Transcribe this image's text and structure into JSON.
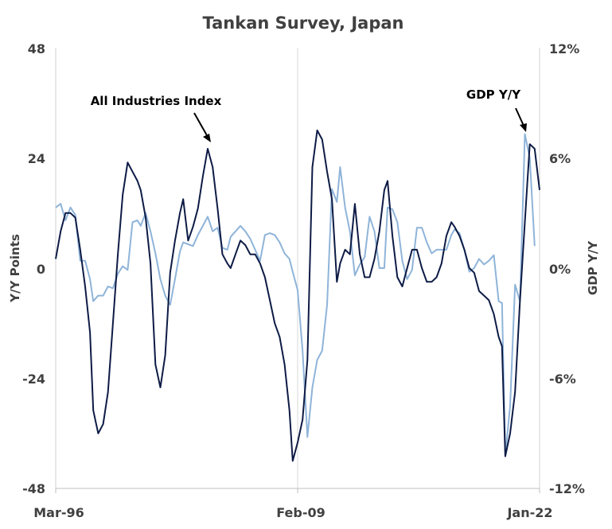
{
  "chart_data": {
    "type": "line",
    "title": "Tankan  Survey, Japan",
    "ylabel_left": "Y/Y Points",
    "ylabel_right": "GDP  Y/Y",
    "left_axis": {
      "ylim": [
        -48,
        48
      ],
      "ticks": [
        "48",
        "24",
        "0",
        "-24",
        "-48"
      ],
      "tick_values": [
        48,
        24,
        0,
        -24,
        -48
      ]
    },
    "right_axis": {
      "ylim": [
        -12,
        12
      ],
      "ticks": [
        "12%",
        "6%",
        "0%",
        "-6%",
        "-12%"
      ],
      "tick_values": [
        12,
        6,
        0,
        -6,
        -12
      ]
    },
    "xlim": [
      1996.17,
      2022.0
    ],
    "x_ticks": [
      {
        "label": "Mar-96",
        "value": 1996.17
      },
      {
        "label": "Feb-09",
        "value": 2009.08
      },
      {
        "label": "Jan-22",
        "value": 2022.0
      }
    ],
    "grid": "vertical-only",
    "annotations": [
      {
        "text": "All Industries Index",
        "series": 0,
        "x": 2005.7,
        "y": 26
      },
      {
        "text": "GDP Y/Y",
        "series": 1,
        "x": 2021.5,
        "y": 6.8
      }
    ],
    "series": [
      {
        "name": "All Industries Index",
        "axis": "left",
        "color": "#0d1b45",
        "points": [
          [
            1996.2,
            2
          ],
          [
            1996.5,
            8
          ],
          [
            1996.8,
            12
          ],
          [
            1997.1,
            12
          ],
          [
            1997.4,
            11
          ],
          [
            1997.7,
            4
          ],
          [
            1998.0,
            -4
          ],
          [
            1998.3,
            -14
          ],
          [
            1998.5,
            -31
          ],
          [
            1998.8,
            -36
          ],
          [
            1999.1,
            -34
          ],
          [
            1999.4,
            -27
          ],
          [
            1999.7,
            -12
          ],
          [
            2000.0,
            3
          ],
          [
            2000.3,
            16
          ],
          [
            2000.6,
            23
          ],
          [
            2000.9,
            21
          ],
          [
            2001.2,
            19
          ],
          [
            2001.4,
            17
          ],
          [
            2001.7,
            11
          ],
          [
            2002.0,
            1
          ],
          [
            2002.3,
            -21
          ],
          [
            2002.6,
            -26
          ],
          [
            2002.9,
            -19
          ],
          [
            2003.2,
            -1
          ],
          [
            2003.5,
            6
          ],
          [
            2003.8,
            12
          ],
          [
            2004.0,
            15
          ],
          [
            2004.3,
            6
          ],
          [
            2004.6,
            9
          ],
          [
            2004.9,
            13
          ],
          [
            2005.2,
            20
          ],
          [
            2005.5,
            26
          ],
          [
            2005.8,
            22
          ],
          [
            2006.1,
            13
          ],
          [
            2006.4,
            3
          ],
          [
            2006.7,
            1
          ],
          [
            2006.9,
            0
          ],
          [
            2007.2,
            3
          ],
          [
            2007.5,
            6
          ],
          [
            2007.8,
            5
          ],
          [
            2008.1,
            3
          ],
          [
            2008.4,
            3
          ],
          [
            2008.7,
            1
          ],
          [
            2009.0,
            -2
          ],
          [
            2009.3,
            -7
          ],
          [
            2009.6,
            -12
          ],
          [
            2009.9,
            -15
          ],
          [
            2010.2,
            -21
          ],
          [
            2010.5,
            -31
          ],
          [
            2010.7,
            -42
          ],
          [
            2011.0,
            -38
          ],
          [
            2011.3,
            -33
          ],
          [
            2011.6,
            -20
          ],
          [
            2011.9,
            22
          ],
          [
            2012.2,
            30
          ],
          [
            2012.5,
            28
          ],
          [
            2012.8,
            21
          ],
          [
            2013.1,
            15
          ],
          [
            2013.4,
            -3
          ],
          [
            2013.6,
            1
          ],
          [
            2013.9,
            4
          ],
          [
            2014.2,
            3
          ],
          [
            2014.5,
            14
          ],
          [
            2014.8,
            3
          ],
          [
            2015.1,
            -2
          ],
          [
            2015.4,
            -2
          ],
          [
            2015.7,
            2
          ],
          [
            2016.0,
            8
          ],
          [
            2016.3,
            17
          ],
          [
            2016.5,
            19
          ],
          [
            2016.8,
            7
          ],
          [
            2017.1,
            -2
          ],
          [
            2017.4,
            -4
          ],
          [
            2017.7,
            0
          ],
          [
            2018.0,
            4
          ],
          [
            2018.3,
            4
          ],
          [
            2018.6,
            0
          ],
          [
            2018.9,
            -3
          ],
          [
            2019.2,
            -3
          ],
          [
            2019.5,
            -2
          ],
          [
            2019.8,
            1
          ],
          [
            2020.1,
            7
          ],
          [
            2020.4,
            10
          ],
          [
            2020.6,
            9
          ],
          [
            2020.9,
            7
          ],
          [
            2021.2,
            4
          ],
          [
            2021.5,
            0
          ],
          [
            2021.8,
            -1
          ],
          [
            2022.1,
            -5
          ],
          [
            2022.4,
            -6
          ],
          [
            2022.7,
            -7
          ],
          [
            2023.0,
            -10
          ],
          [
            2023.3,
            -15
          ],
          [
            2023.5,
            -17
          ],
          [
            2023.7,
            -41
          ],
          [
            2024.0,
            -36
          ],
          [
            2024.3,
            -27
          ],
          [
            2024.6,
            -7
          ],
          [
            2024.9,
            10
          ],
          [
            2025.2,
            27
          ],
          [
            2025.5,
            26
          ],
          [
            2025.8,
            17
          ]
        ]
      },
      {
        "name": "GDP Y/Y",
        "axis": "right",
        "color": "#8fb4d9",
        "points": [
          [
            1996.2,
            3.3
          ],
          [
            1996.5,
            3.5
          ],
          [
            1996.8,
            2.6
          ],
          [
            1997.1,
            3.3
          ],
          [
            1997.4,
            2.9
          ],
          [
            1997.7,
            0.4
          ],
          [
            1998.0,
            0.4
          ],
          [
            1998.3,
            -0.6
          ],
          [
            1998.5,
            -1.8
          ],
          [
            1998.8,
            -1.5
          ],
          [
            1999.1,
            -1.5
          ],
          [
            1999.4,
            -1.0
          ],
          [
            1999.7,
            -1.1
          ],
          [
            2000.0,
            -0.3
          ],
          [
            2000.3,
            0.1
          ],
          [
            2000.6,
            -0.1
          ],
          [
            2000.9,
            2.5
          ],
          [
            2001.2,
            2.6
          ],
          [
            2001.4,
            2.3
          ],
          [
            2001.7,
            3.0
          ],
          [
            2002.0,
            2.0
          ],
          [
            2002.3,
            0.8
          ],
          [
            2002.6,
            -0.6
          ],
          [
            2002.9,
            -1.5
          ],
          [
            2003.2,
            -2.0
          ],
          [
            2003.5,
            -0.6
          ],
          [
            2003.8,
            0.9
          ],
          [
            2004.0,
            1.4
          ],
          [
            2004.3,
            1.3
          ],
          [
            2004.6,
            1.2
          ],
          [
            2004.9,
            1.8
          ],
          [
            2005.2,
            2.3
          ],
          [
            2005.5,
            2.8
          ],
          [
            2005.8,
            2.0
          ],
          [
            2006.1,
            2.2
          ],
          [
            2006.4,
            1.1
          ],
          [
            2006.7,
            1.0
          ],
          [
            2006.9,
            1.7
          ],
          [
            2007.2,
            2.0
          ],
          [
            2007.5,
            2.3
          ],
          [
            2007.8,
            2.0
          ],
          [
            2008.1,
            1.6
          ],
          [
            2008.4,
            1.0
          ],
          [
            2008.7,
            0.4
          ],
          [
            2009.0,
            1.8
          ],
          [
            2009.3,
            1.9
          ],
          [
            2009.6,
            1.8
          ],
          [
            2009.9,
            1.4
          ],
          [
            2010.2,
            0.8
          ],
          [
            2010.5,
            0.5
          ],
          [
            2010.7,
            -0.2
          ],
          [
            2011.0,
            -1.2
          ],
          [
            2011.3,
            -4.5
          ],
          [
            2011.6,
            -9.2
          ],
          [
            2011.9,
            -6.5
          ],
          [
            2012.2,
            -5.0
          ],
          [
            2012.5,
            -4.5
          ],
          [
            2012.8,
            -2.0
          ],
          [
            2013.1,
            4.3
          ],
          [
            2013.4,
            3.6
          ],
          [
            2013.6,
            5.5
          ],
          [
            2013.9,
            3.3
          ],
          [
            2014.2,
            2.0
          ],
          [
            2014.5,
            -0.4
          ],
          [
            2014.8,
            0.2
          ],
          [
            2015.1,
            0.6
          ],
          [
            2015.4,
            2.8
          ],
          [
            2015.7,
            2.0
          ],
          [
            2016.0,
            0.0
          ],
          [
            2016.3,
            0.0
          ],
          [
            2016.5,
            3.3
          ],
          [
            2016.8,
            3.2
          ],
          [
            2017.1,
            2.5
          ],
          [
            2017.4,
            0.4
          ],
          [
            2017.7,
            -0.6
          ],
          [
            2018.0,
            -0.1
          ],
          [
            2018.3,
            2.2
          ],
          [
            2018.6,
            2.2
          ],
          [
            2018.9,
            1.4
          ],
          [
            2019.2,
            0.8
          ],
          [
            2019.5,
            1.0
          ],
          [
            2019.8,
            1.0
          ],
          [
            2020.1,
            1.0
          ],
          [
            2020.4,
            1.8
          ],
          [
            2020.6,
            2.1
          ],
          [
            2020.9,
            1.9
          ],
          [
            2021.2,
            1.0
          ],
          [
            2021.5,
            -0.2
          ],
          [
            2021.8,
            0.0
          ],
          [
            2022.1,
            0.5
          ],
          [
            2022.4,
            0.2
          ],
          [
            2022.7,
            0.4
          ],
          [
            2023.0,
            0.7
          ],
          [
            2023.3,
            -1.8
          ],
          [
            2023.5,
            -1.9
          ],
          [
            2023.7,
            -10.2
          ],
          [
            2024.0,
            -7.5
          ],
          [
            2024.3,
            -0.9
          ],
          [
            2024.6,
            -1.8
          ],
          [
            2024.9,
            7.3
          ],
          [
            2025.2,
            6.0
          ],
          [
            2025.5,
            1.2
          ]
        ]
      }
    ]
  }
}
